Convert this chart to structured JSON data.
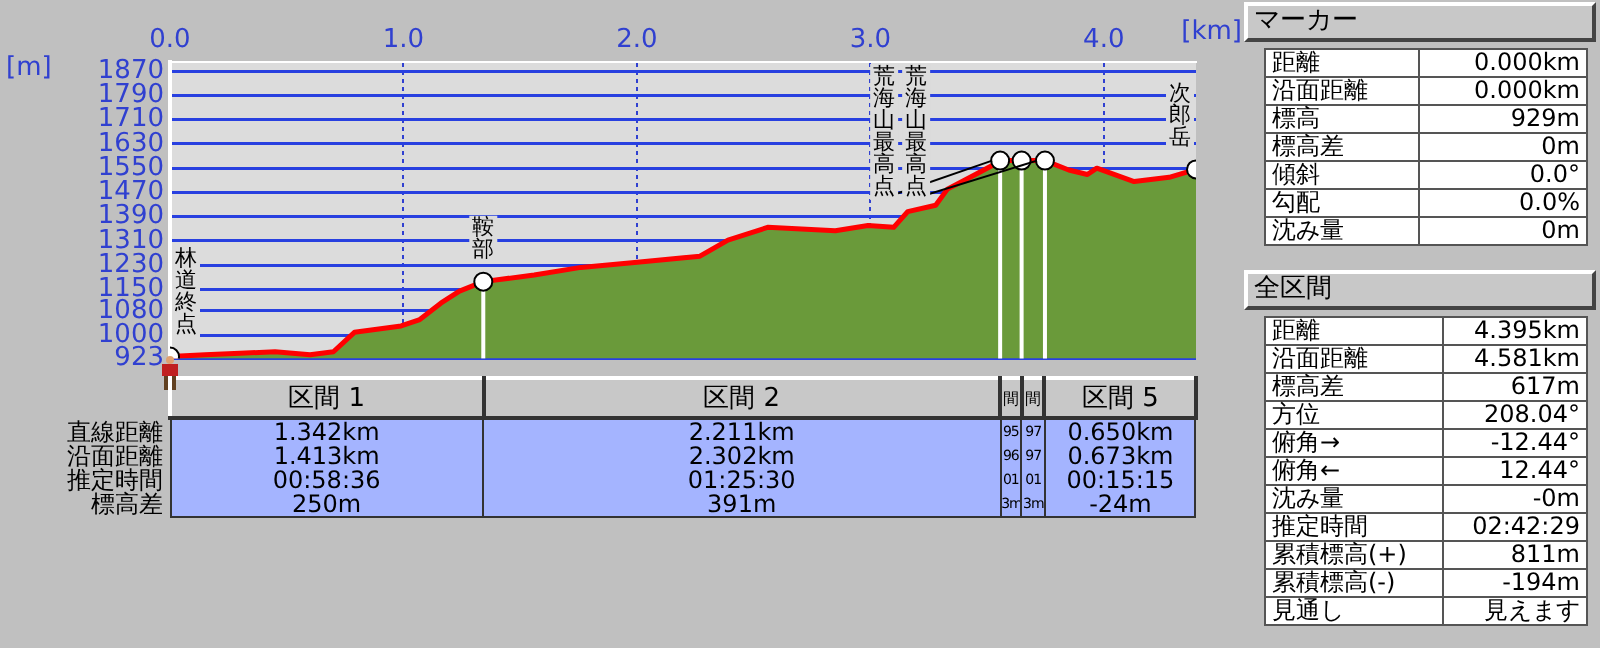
{
  "chart_data": [
    {
      "type": "area",
      "xlabel": "[km]",
      "ylabel": "[m]",
      "xlim": [
        0,
        4.395
      ],
      "ylim": [
        923,
        1900
      ],
      "xticks": [
        {
          "value": 0,
          "label": "0.0"
        },
        {
          "value": 1,
          "label": "1.0"
        },
        {
          "value": 2,
          "label": "2.0"
        },
        {
          "value": 3,
          "label": "3.0"
        },
        {
          "value": 4,
          "label": "4.0"
        }
      ],
      "yticks": [
        923,
        1000,
        1080,
        1150,
        1230,
        1310,
        1390,
        1470,
        1550,
        1630,
        1710,
        1790,
        1870
      ],
      "grid": true,
      "legend": false,
      "series": [
        {
          "type": "area",
          "color": "#6a9a3a",
          "x": [
            0,
            0.15,
            0.3,
            0.45,
            0.6,
            0.7,
            0.79,
            0.99,
            1.07,
            1.16,
            1.24,
            1.342,
            1.56,
            1.76,
            1.99,
            2.27,
            2.39,
            2.56,
            2.85,
            2.99,
            3.1,
            3.16,
            3.28,
            3.33,
            3.45,
            3.52,
            3.556,
            3.648,
            3.748,
            3.85,
            3.93,
            3.97,
            4.13,
            4.28,
            4.395
          ],
          "values": [
            929,
            935,
            940,
            945,
            935,
            945,
            1009,
            1030,
            1051,
            1105,
            1145,
            1176,
            1198,
            1223,
            1239,
            1260,
            1313,
            1355,
            1344,
            1361,
            1355,
            1407,
            1428,
            1481,
            1529,
            1558,
            1575,
            1575,
            1575,
            1544,
            1529,
            1550,
            1506,
            1520,
            1546
          ]
        },
        {
          "type": "scatter",
          "color": "#ffffff",
          "marker": "circle",
          "x": [
            0,
            1.342,
            3.556,
            3.648,
            3.748,
            4.395
          ],
          "values": [
            929,
            1176,
            1575,
            1575,
            1575,
            1546
          ]
        }
      ],
      "ref_lines": [
        {
          "axis": "x",
          "value": 1.342,
          "color": "#ffffff"
        },
        {
          "axis": "x",
          "value": 3.556,
          "color": "#ffffff"
        },
        {
          "axis": "x",
          "value": 3.648,
          "color": "#ffffff"
        },
        {
          "axis": "x",
          "value": 3.748,
          "color": "#ffffff"
        }
      ],
      "annotations": [
        {
          "text": "林道終点",
          "x": 0,
          "y": 929
        },
        {
          "text": "鞍部",
          "x": 1.342,
          "y": 1176
        },
        {
          "text": "荒海山最高点",
          "x": 3.556,
          "y": 1575
        },
        {
          "text": "荒海山最高点",
          "x": 3.748,
          "y": 1575
        },
        {
          "text": "次郎岳",
          "x": 4.395,
          "y": 1546
        }
      ]
    },
    {
      "type": "other",
      "categories": [
        "区間 1",
        "区間 2",
        "間",
        "間",
        "区間 5"
      ],
      "y_categories": [
        "直線距離",
        "沿面距離",
        "推定時間",
        "標高差"
      ],
      "cell_labels": [
        [
          "1.342km",
          "2.211km",
          "95",
          "97",
          "0.650km"
        ],
        [
          "1.413km",
          "2.302km",
          "96",
          "97",
          "0.673km"
        ],
        [
          "00:58:36",
          "01:25:30",
          "01",
          "01",
          "00:15:15"
        ],
        [
          "250m",
          "391m",
          "3m",
          "3m",
          "-24m"
        ]
      ]
    },
    {
      "type": "other",
      "title": "マーカー",
      "y_categories": [
        "距離",
        "沿面距離",
        "標高",
        "標高差",
        "傾斜",
        "勾配",
        "沈み量"
      ],
      "cell_labels": [
        [
          "0.000km"
        ],
        [
          "0.000km"
        ],
        [
          "929m"
        ],
        [
          "0m"
        ],
        [
          "0.0°"
        ],
        [
          "0.0%"
        ],
        [
          "0m"
        ]
      ]
    },
    {
      "type": "other",
      "title": "全区間",
      "y_categories": [
        "距離",
        "沿面距離",
        "標高差",
        "方位",
        "俯角→",
        "俯角←",
        "沈み量",
        "推定時間",
        "累積標高(+)",
        "累積標高(-)",
        "見通し"
      ],
      "cell_labels": [
        [
          "4.395km"
        ],
        [
          "4.581km"
        ],
        [
          "617m"
        ],
        [
          "208.04°"
        ],
        [
          "-12.44°"
        ],
        [
          "12.44°"
        ],
        [
          "-0m"
        ],
        [
          "02:42:29"
        ],
        [
          "811m"
        ],
        [
          "-194m"
        ],
        [
          "見えます"
        ]
      ]
    }
  ]
}
